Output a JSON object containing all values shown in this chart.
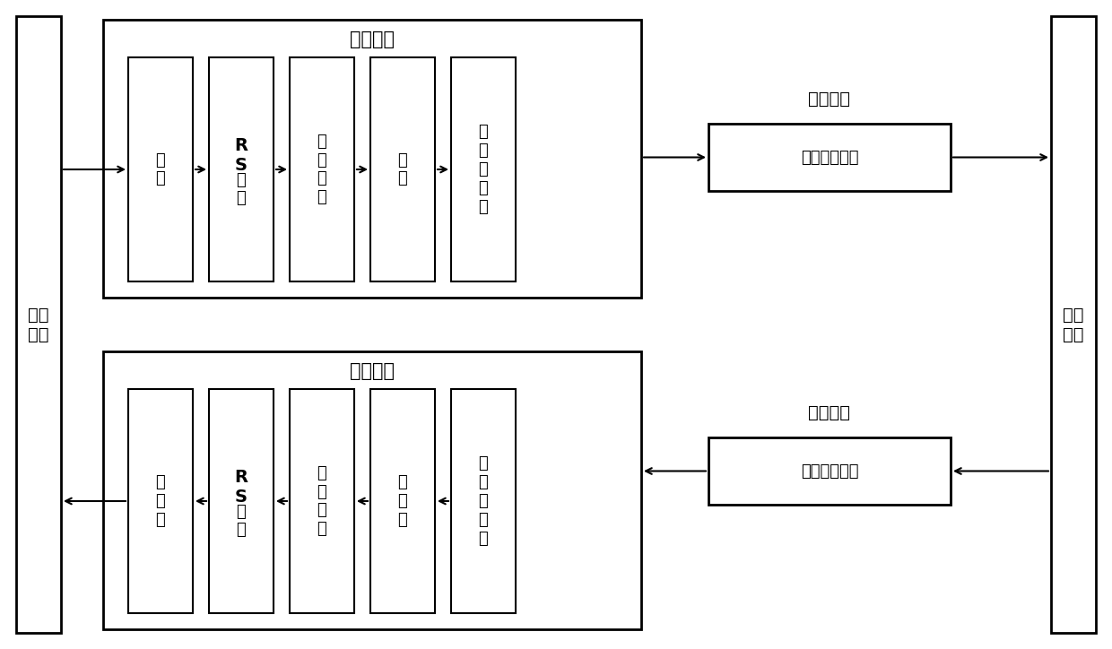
{
  "bg_color": "#ffffff",
  "line_color": "#000000",
  "title_encode": "信道编码",
  "title_decode": "信道解码",
  "label_main_ctrl": "主控\n模块",
  "label_shortwave": "短波\n电台",
  "label_data_send": "数据发送",
  "label_data_recv": "数据接收",
  "label_audio_mod": "音频信号调制",
  "label_audio_demod": "音频信号解调",
  "encode_blocks": [
    "扰码",
    "R S编码",
    "汉明编码",
    "交织",
    "插入帧同步"
  ],
  "decode_blocks": [
    "解扰码",
    "R S译码",
    "汉明译码",
    "解交织",
    "提取帧同步"
  ]
}
